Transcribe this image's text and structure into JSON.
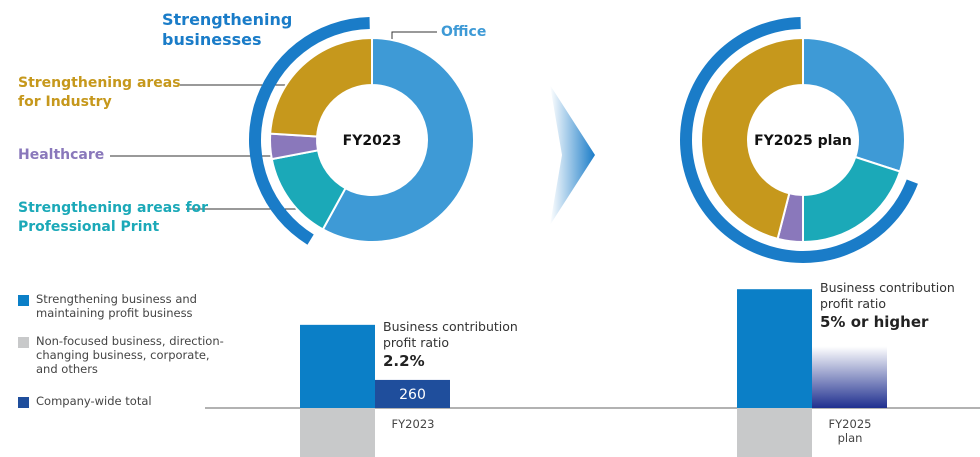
{
  "chart_data": [
    {
      "type": "pie",
      "title": "FY2023",
      "ring_label": "Strengthening businesses",
      "categories": [
        "Office",
        "Strengthening areas for Professional Print",
        "Healthcare",
        "Strengthening areas for Industry"
      ],
      "values": [
        58,
        14,
        4,
        24
      ],
      "colors": [
        "#3e9ad6",
        "#1ba9b8",
        "#8a78bb",
        "#c6981c"
      ],
      "ring_color": "#1a7cc8"
    },
    {
      "type": "pie",
      "title": "FY2025 plan",
      "values": [
        30,
        20,
        4,
        46
      ],
      "colors": [
        "#3e9ad6",
        "#1ba9b8",
        "#8a78bb",
        "#c6981c"
      ],
      "ring_color": "#1a7cc8"
    },
    {
      "type": "bar",
      "categories": [
        "FY2023",
        "FY2025 plan"
      ],
      "series": [
        {
          "name": "Strengthening business and maintaining profit business",
          "color": "#0b7fc7",
          "values": [
            770,
            1100
          ]
        },
        {
          "name": "Non-focused business, direction-changing business, corporate, and others",
          "color": "#c8c9ca",
          "values": [
            -460,
            -460
          ]
        },
        {
          "name": "Company-wide total",
          "color": "#1f4e9c",
          "values": [
            260,
            570
          ],
          "value_labels": [
            "260",
            null
          ]
        }
      ],
      "annotations": [
        {
          "label": "Business contribution profit ratio",
          "value": "2.2%"
        },
        {
          "label": "Business contribution profit ratio",
          "value": "5% or higher"
        }
      ]
    }
  ]
}
